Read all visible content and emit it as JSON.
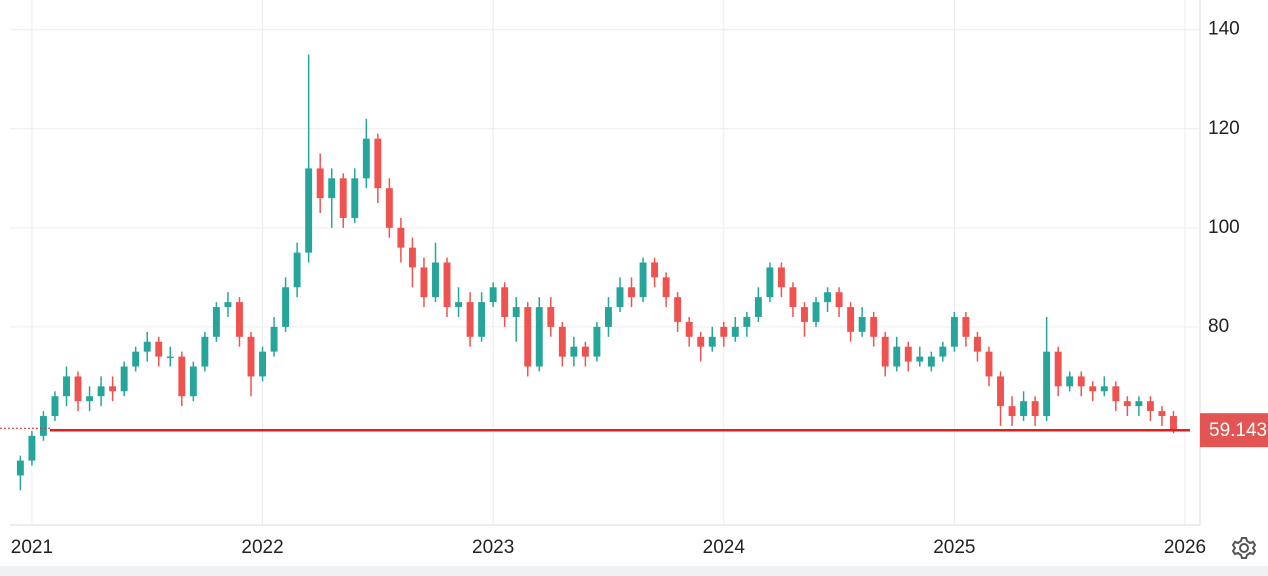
{
  "chart_data": {
    "type": "candlestick",
    "x": [
      2020.95,
      2021,
      2021.05,
      2021.1,
      2021.15,
      2021.2,
      2021.25,
      2021.3,
      2021.35,
      2021.4,
      2021.45,
      2021.5,
      2021.55,
      2021.6,
      2021.65,
      2021.7,
      2021.75,
      2021.8,
      2021.85,
      2021.9,
      2021.95,
      2022,
      2022.05,
      2022.1,
      2022.15,
      2022.2,
      2022.25,
      2022.3,
      2022.35,
      2022.4,
      2022.45,
      2022.5,
      2022.55,
      2022.6,
      2022.65,
      2022.7,
      2022.75,
      2022.8,
      2022.85,
      2022.9,
      2022.95,
      2023,
      2023.05,
      2023.1,
      2023.15,
      2023.2,
      2023.25,
      2023.3,
      2023.35,
      2023.4,
      2023.45,
      2023.5,
      2023.55,
      2023.6,
      2023.65,
      2023.7,
      2023.75,
      2023.8,
      2023.85,
      2023.9,
      2023.95,
      2024,
      2024.05,
      2024.1,
      2024.15,
      2024.2,
      2024.25,
      2024.3,
      2024.35,
      2024.4,
      2024.45,
      2024.5,
      2024.55,
      2024.6,
      2024.65,
      2024.7,
      2024.75,
      2024.8,
      2024.85,
      2024.9,
      2024.95,
      2025,
      2025.05,
      2025.1,
      2025.15,
      2025.2,
      2025.25,
      2025.3,
      2025.35,
      2025.4,
      2025.45,
      2025.5,
      2025.55,
      2025.6,
      2025.65,
      2025.7,
      2025.75,
      2025.8,
      2025.85,
      2025.9,
      2025.95
    ],
    "open": [
      50,
      53,
      58,
      62,
      66,
      70,
      65,
      66,
      68,
      67,
      72,
      75,
      77,
      74,
      74,
      66,
      72,
      78,
      84,
      85,
      78,
      70,
      75,
      80,
      88,
      95,
      112,
      106,
      110,
      102,
      110,
      118,
      108,
      100,
      96,
      92,
      86,
      93,
      84,
      85,
      78,
      85,
      88,
      82,
      84,
      72,
      84,
      80,
      74,
      76,
      74,
      80,
      84,
      88,
      86,
      93,
      90,
      86,
      81,
      78,
      76,
      80,
      78,
      80,
      82,
      86,
      92,
      88,
      84,
      81,
      85,
      87,
      84,
      79,
      82,
      78,
      72,
      76,
      73,
      72,
      74,
      76,
      82,
      78,
      75,
      70,
      64,
      62,
      65,
      62,
      75,
      68,
      70,
      68,
      67,
      68,
      65,
      64,
      65,
      63,
      62
    ],
    "high": [
      54,
      59,
      63,
      67,
      72,
      71,
      68,
      70,
      70,
      73,
      76,
      79,
      78,
      76,
      75,
      73,
      79,
      85,
      87,
      86,
      79,
      76,
      82,
      90,
      97,
      135,
      115,
      112,
      111,
      112,
      122,
      119,
      110,
      102,
      98,
      94,
      97,
      94,
      88,
      87,
      87,
      89,
      89,
      86,
      85,
      86,
      86,
      81,
      78,
      77,
      81,
      86,
      90,
      90,
      94,
      94,
      91,
      87,
      82,
      79,
      80,
      81,
      82,
      83,
      88,
      93,
      93,
      89,
      85,
      86,
      88,
      88,
      85,
      84,
      83,
      79,
      78,
      77,
      76,
      75,
      77,
      83,
      83,
      79,
      76,
      71,
      66,
      67,
      66,
      82,
      76,
      71,
      71,
      69,
      70,
      69,
      66,
      66,
      66,
      64,
      63
    ],
    "low": [
      47,
      52,
      57,
      61,
      64,
      63,
      63,
      64,
      65,
      66,
      71,
      73,
      72,
      72,
      64,
      65,
      71,
      77,
      82,
      76,
      66,
      69,
      74,
      79,
      86,
      93,
      103,
      100,
      100,
      101,
      108,
      105,
      98,
      93,
      88,
      84,
      85,
      82,
      82,
      76,
      77,
      84,
      80,
      77,
      70,
      71,
      78,
      72,
      72,
      72,
      73,
      78,
      83,
      84,
      85,
      88,
      84,
      79,
      76,
      73,
      75,
      76,
      77,
      78,
      81,
      85,
      86,
      82,
      78,
      80,
      83,
      82,
      77,
      78,
      76,
      70,
      71,
      71,
      72,
      71,
      73,
      75,
      76,
      73,
      68,
      60,
      60,
      61,
      60,
      61,
      66,
      67,
      66,
      65,
      66,
      63,
      62,
      62,
      61,
      60,
      58.5
    ],
    "close": [
      53,
      58,
      62,
      66,
      70,
      65,
      66,
      68,
      67,
      72,
      75,
      77,
      74,
      74,
      66,
      72,
      78,
      84,
      85,
      78,
      70,
      75,
      80,
      88,
      95,
      112,
      106,
      110,
      102,
      110,
      118,
      108,
      100,
      96,
      92,
      86,
      93,
      84,
      85,
      78,
      85,
      88,
      82,
      84,
      72,
      84,
      80,
      74,
      76,
      74,
      80,
      84,
      88,
      86,
      93,
      90,
      86,
      81,
      78,
      76,
      78,
      78,
      80,
      82,
      86,
      92,
      88,
      84,
      81,
      85,
      87,
      84,
      79,
      82,
      78,
      72,
      76,
      73,
      74,
      74,
      76,
      82,
      78,
      75,
      70,
      64,
      62,
      65,
      62,
      75,
      68,
      70,
      68,
      67,
      68,
      65,
      64,
      65,
      63,
      62,
      59.143
    ],
    "up_color": "#26a69a",
    "down_color": "#ef5350",
    "xlim": [
      2020.905,
      2026.065
    ],
    "ylim": [
      40,
      146
    ],
    "xticks": [
      2021,
      2022,
      2023,
      2024,
      2025,
      2026
    ],
    "yticks": [
      80,
      100,
      120,
      140
    ],
    "grid": true,
    "last_price": 59.143,
    "last_price_color": "#e0201b"
  }
}
